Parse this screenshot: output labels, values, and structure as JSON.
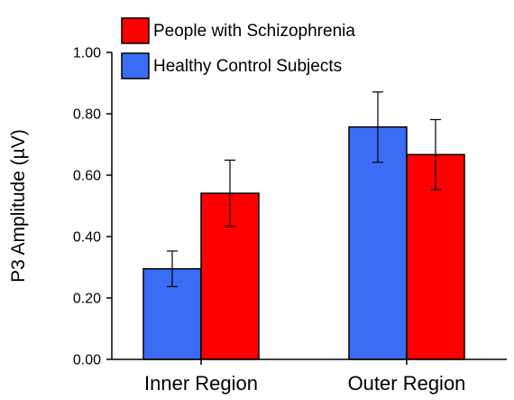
{
  "chart_data": {
    "type": "bar",
    "title": "",
    "xlabel": "",
    "ylabel": "P3 Amplitude (µV)",
    "ylim": [
      0,
      1.0
    ],
    "yticks": [
      "0.00",
      "0.20",
      "0.40",
      "0.60",
      "0.80",
      "1.00"
    ],
    "categories": [
      "Inner Region",
      "Outer Region"
    ],
    "series": [
      {
        "name": "Healthy Control Subjects",
        "color": "#3b6cf5",
        "values": [
          0.295,
          0.757
        ],
        "error_low": [
          0.237,
          0.642
        ],
        "error_high": [
          0.353,
          0.871
        ]
      },
      {
        "name": "People with Schizophrenia",
        "color": "#ff0000",
        "values": [
          0.541,
          0.667
        ],
        "error_low": [
          0.433,
          0.553
        ],
        "error_high": [
          0.649,
          0.781
        ]
      }
    ],
    "legend": {
      "position": "top-left",
      "order": [
        "People with Schizophrenia",
        "Healthy Control Subjects"
      ]
    },
    "grid": false
  }
}
